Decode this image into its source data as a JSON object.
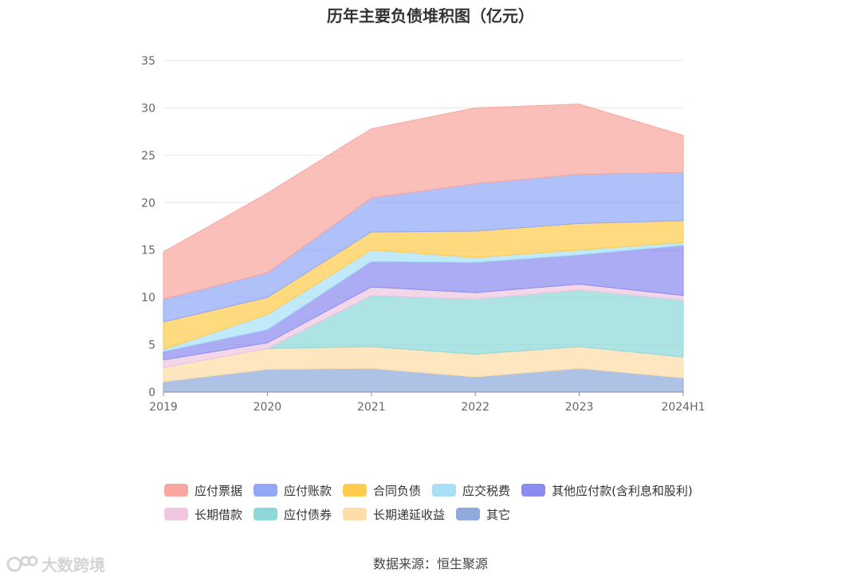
{
  "chart_data": {
    "type": "area",
    "stacked": true,
    "title": "历年主要负债堆积图（亿元）",
    "x": [
      "2019",
      "2020",
      "2021",
      "2022",
      "2023",
      "2024H1"
    ],
    "ylim": [
      0,
      35
    ],
    "yticks": [
      0,
      5,
      10,
      15,
      20,
      25,
      30,
      35
    ],
    "grid": true,
    "legend_position": "bottom",
    "series": [
      {
        "name": "其它",
        "color": "#8FAADC",
        "values": [
          1.1,
          2.4,
          2.5,
          1.6,
          2.5,
          1.5
        ]
      },
      {
        "name": "长期递延收益",
        "color": "#FDDDA8",
        "values": [
          1.5,
          2.2,
          2.3,
          2.4,
          2.3,
          2.2
        ]
      },
      {
        "name": "应付债券",
        "color": "#8ED8D8",
        "values": [
          0.0,
          0.0,
          5.4,
          5.8,
          6.0,
          6.0
        ]
      },
      {
        "name": "长期借款",
        "color": "#F0C6E0",
        "values": [
          0.8,
          0.6,
          0.9,
          0.7,
          0.6,
          0.5
        ]
      },
      {
        "name": "其他应付款(含利息和股利)",
        "color": "#8C8CF0",
        "values": [
          0.9,
          1.4,
          2.7,
          3.2,
          3.1,
          5.3
        ]
      },
      {
        "name": "应交税费",
        "color": "#A8E0F8",
        "values": [
          0.2,
          1.6,
          1.2,
          0.5,
          0.5,
          0.3
        ]
      },
      {
        "name": "合同负债",
        "color": "#FFCC4D",
        "values": [
          2.9,
          1.8,
          1.9,
          2.8,
          2.8,
          2.3
        ]
      },
      {
        "name": "应付账款",
        "color": "#92A8F7",
        "values": [
          2.4,
          2.6,
          3.6,
          5.0,
          5.2,
          5.1
        ]
      },
      {
        "name": "应付票据",
        "color": "#F9A6A0",
        "values": [
          5.0,
          8.4,
          7.3,
          8.0,
          7.4,
          3.9
        ]
      }
    ]
  },
  "legend": {
    "row1": [
      "应付票据",
      "应付账款",
      "合同负债",
      "应交税费",
      "其他应付款(含利息和股利)"
    ],
    "row2": [
      "长期借款",
      "应付债券",
      "长期递延收益",
      "其它"
    ]
  },
  "source_text": "数据来源：恒生聚源",
  "watermark_text": "大数跨境"
}
